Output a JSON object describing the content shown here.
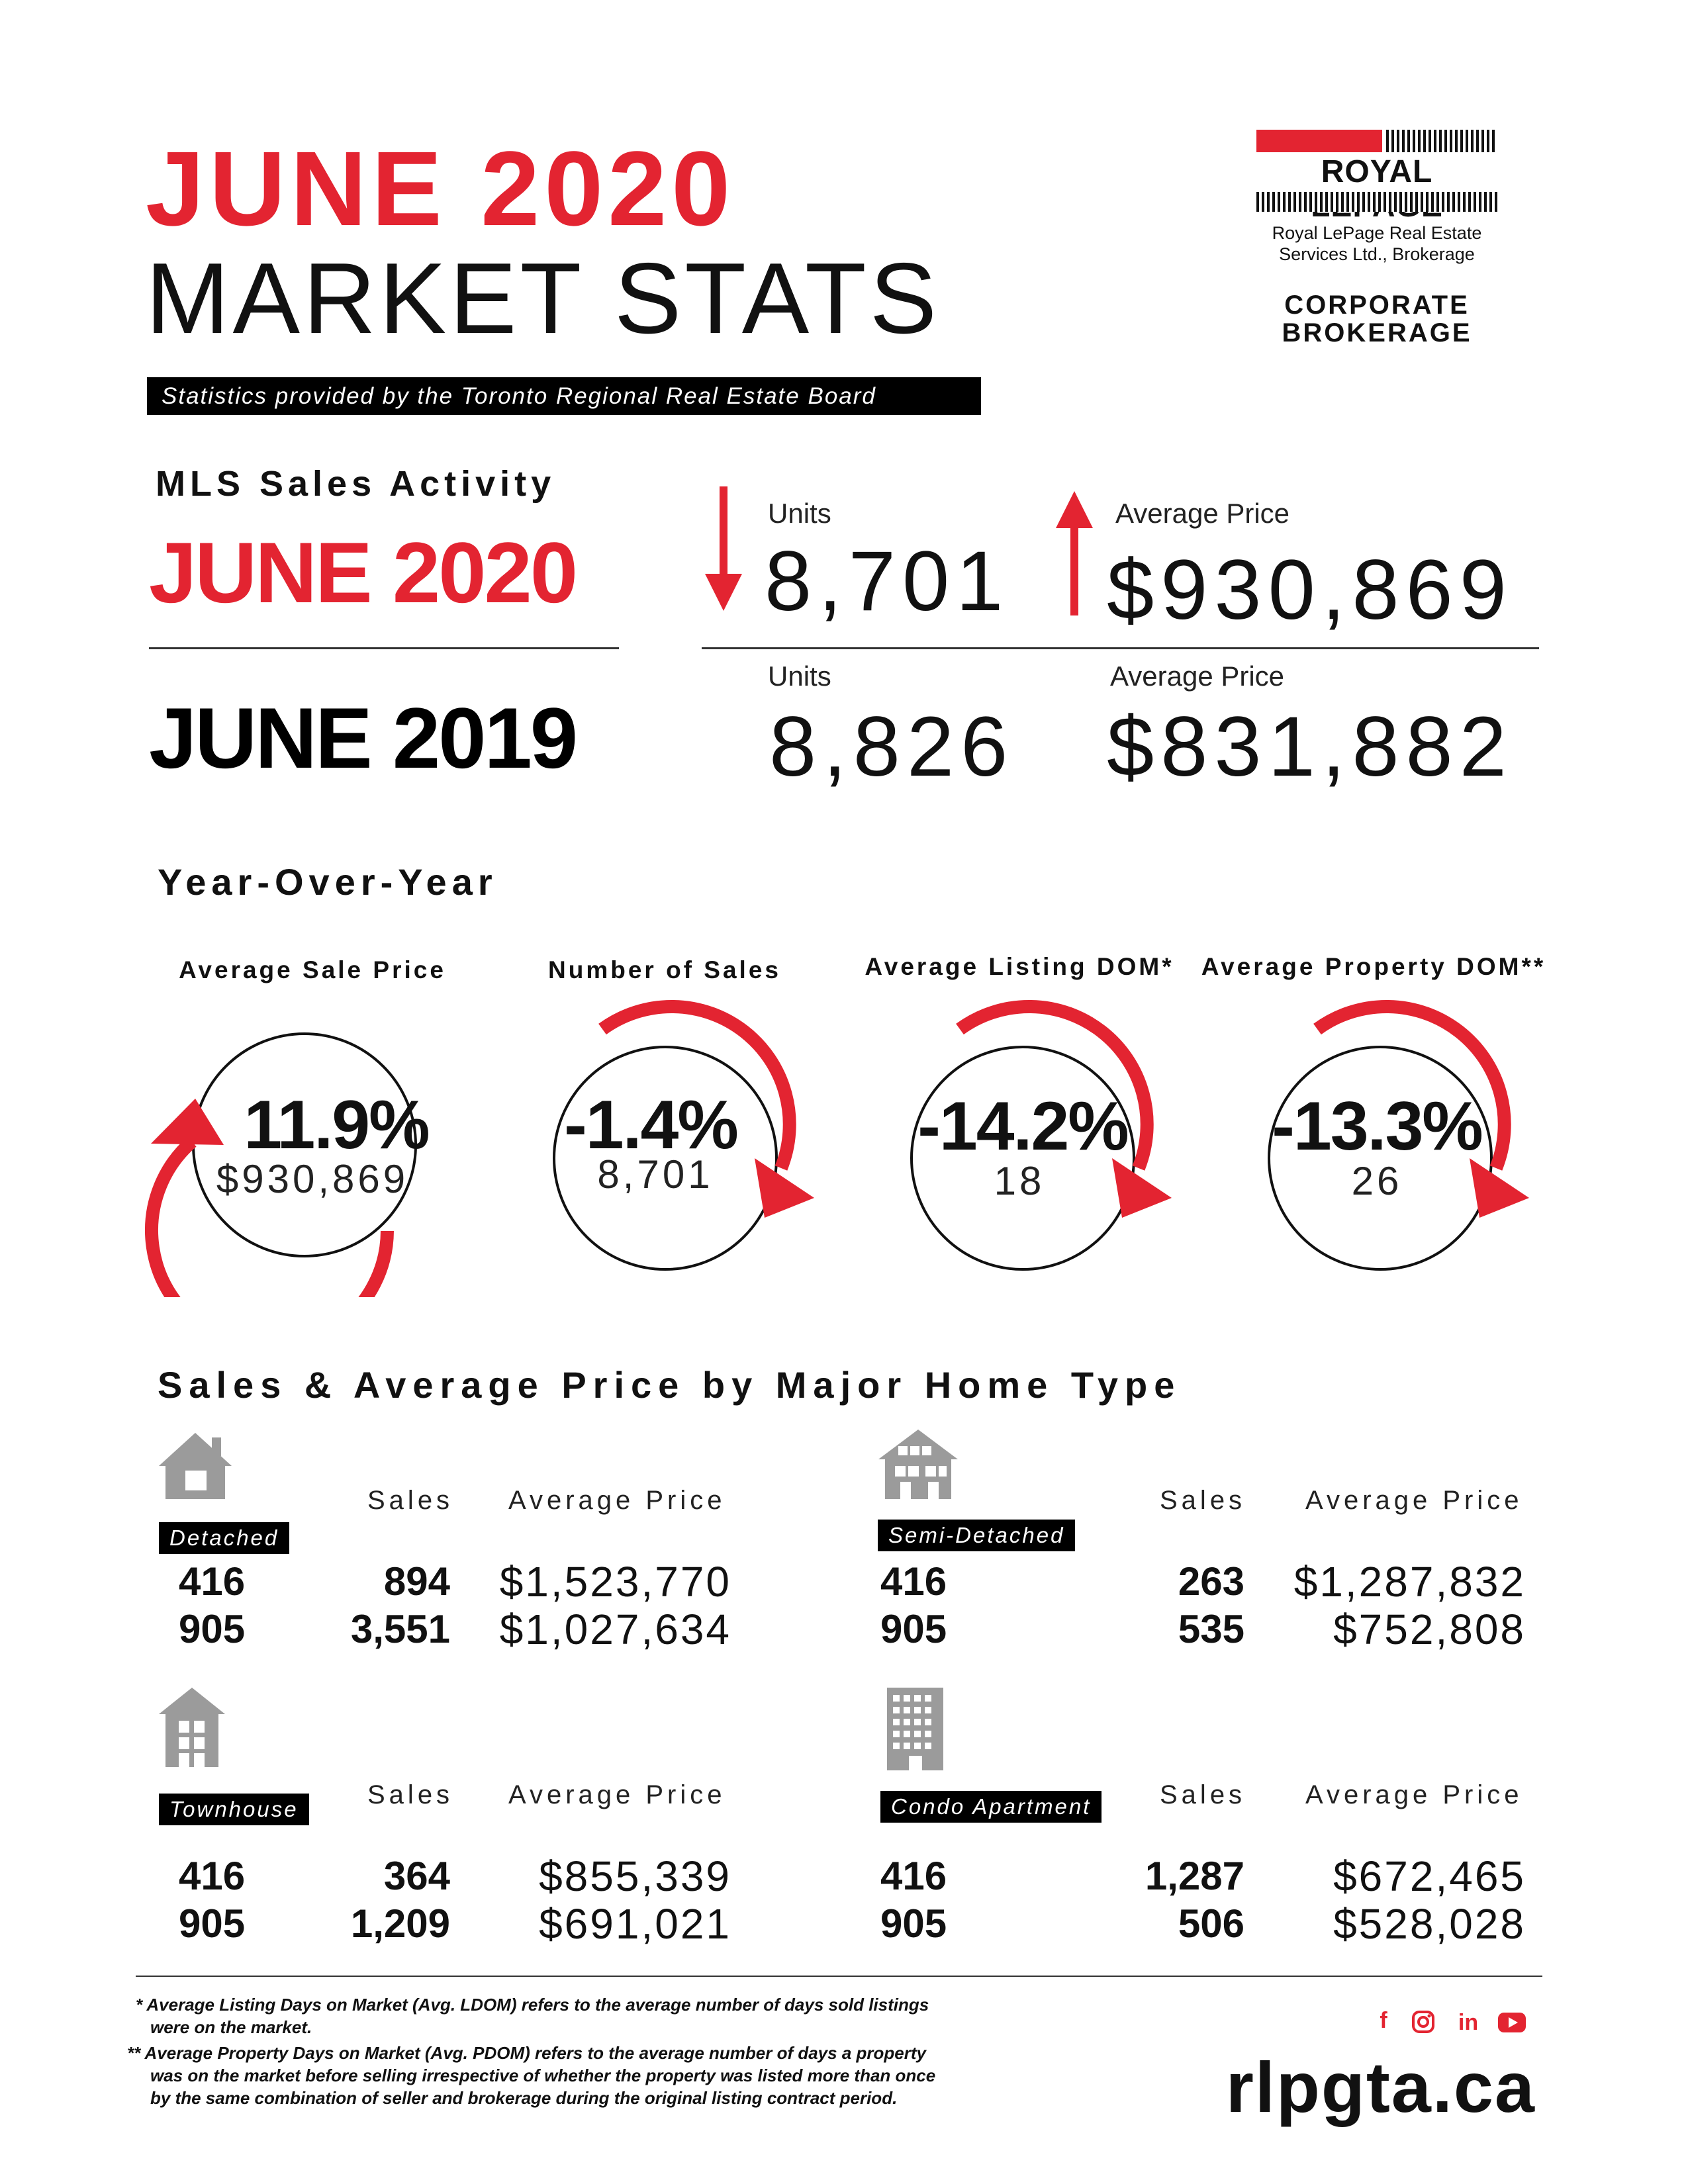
{
  "header": {
    "title_line1": "JUNE 2020",
    "title_line2": "MARKET STATS",
    "source": "Statistics provided by the Toronto Regional Real Estate Board"
  },
  "logo": {
    "wordmark": "ROYAL LEPAGE",
    "subtitle_line1": "Royal LePage Real Estate",
    "subtitle_line2": "Services Ltd., Brokerage",
    "tagline_line1": "CORPORATE",
    "tagline_line2": "BROKERAGE"
  },
  "mls": {
    "heading": "MLS Sales Activity",
    "current": {
      "label": "JUNE 2020",
      "units_label": "Units",
      "units": "8,701",
      "price_label": "Average Price",
      "price": "$930,869",
      "units_trend": "down-arrow-icon",
      "price_trend": "up-arrow-icon"
    },
    "previous": {
      "label": "JUNE 2019",
      "units_label": "Units",
      "units": "8,826",
      "price_label": "Average Price",
      "price": "$831,882"
    }
  },
  "yoy": {
    "heading": "Year-Over-Year",
    "items": [
      {
        "label": "Average Sale Price",
        "percent": "11.9%",
        "value": "$930,869"
      },
      {
        "label": "Number of Sales",
        "percent": "-1.4%",
        "value": "8,701"
      },
      {
        "label": "Average Listing DOM*",
        "percent": "-14.2%",
        "value": "18"
      },
      {
        "label": "Average Property DOM**",
        "percent": "-13.3%",
        "value": "26"
      }
    ]
  },
  "home_types": {
    "heading": "Sales & Average Price by Major Home Type",
    "sales_label": "Sales",
    "price_label": "Average Price",
    "types": [
      {
        "name": "Detached",
        "icon": "house-icon",
        "rows": [
          {
            "area": "416",
            "sales": "894",
            "price": "$1,523,770"
          },
          {
            "area": "905",
            "sales": "3,551",
            "price": "$1,027,634"
          }
        ]
      },
      {
        "name": "Semi-Detached",
        "icon": "semi-detached-icon",
        "rows": [
          {
            "area": "416",
            "sales": "263",
            "price": "$1,287,832"
          },
          {
            "area": "905",
            "sales": "535",
            "price": "$752,808"
          }
        ]
      },
      {
        "name": "Townhouse",
        "icon": "townhouse-icon",
        "rows": [
          {
            "area": "416",
            "sales": "364",
            "price": "$855,339"
          },
          {
            "area": "905",
            "sales": "1,209",
            "price": "$691,021"
          }
        ]
      },
      {
        "name": "Condo Apartment",
        "icon": "condo-building-icon",
        "rows": [
          {
            "area": "416",
            "sales": "1,287",
            "price": "$672,465"
          },
          {
            "area": "905",
            "sales": "506",
            "price": "$528,028"
          }
        ]
      }
    ]
  },
  "footer": {
    "note1_line1": "* Average Listing Days on Market (Avg. LDOM) refers to the average number of days sold listings",
    "note1_line2": "were on the market.",
    "note2_line1": "** Average Property Days on Market (Avg. PDOM) refers to the average number of days a property",
    "note2_line2": "was on the market before selling irrespective of whether the property was listed more than once",
    "note2_line3": "by the same combination of seller and brokerage during the original listing contract period.",
    "url": "rlpgta.ca",
    "social_icons": [
      "facebook-icon",
      "instagram-icon",
      "linkedin-icon",
      "youtube-icon"
    ],
    "social_text": {
      "facebook": "f",
      "linkedin": "in"
    }
  },
  "colors": {
    "accent": "#e32431",
    "text": "#111111",
    "icon_gray": "#9b9b9b"
  }
}
